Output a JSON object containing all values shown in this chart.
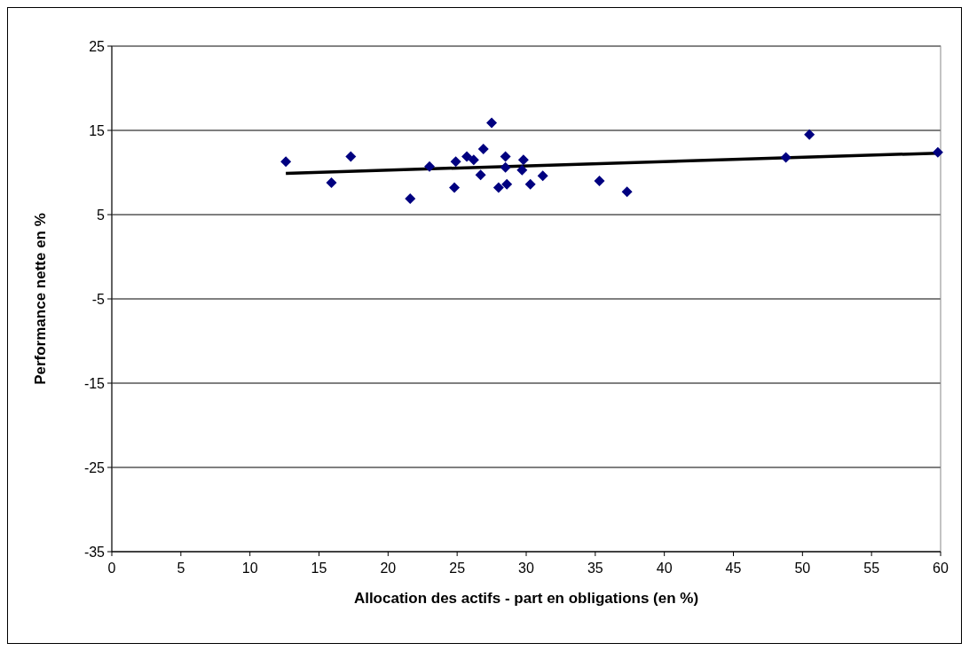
{
  "chart_data": {
    "type": "scatter",
    "xlabel": "Allocation des actifs - part en obligations (en %)",
    "ylabel": "Performance nette en %",
    "xlim": [
      0,
      60
    ],
    "xticks": [
      0,
      5,
      10,
      15,
      20,
      25,
      30,
      35,
      40,
      45,
      50,
      55,
      60
    ],
    "ylim": [
      -35,
      25
    ],
    "yticks": [
      -35,
      -25,
      -15,
      -5,
      5,
      15,
      25
    ],
    "grid": "y",
    "marker": "diamond",
    "series": [
      {
        "color": "#000080",
        "x": [
          12.6,
          15.9,
          17.3,
          21.6,
          23.0,
          24.9,
          24.8,
          25.7,
          26.2,
          26.9,
          26.7,
          27.5,
          28.0,
          28.6,
          28.5,
          28.5,
          29.8,
          29.7,
          30.3,
          31.2,
          35.3,
          37.3,
          48.8,
          50.5,
          59.8
        ],
        "values": [
          11.3,
          8.8,
          11.9,
          6.9,
          10.7,
          11.3,
          8.2,
          11.9,
          11.5,
          12.8,
          9.7,
          15.9,
          8.2,
          8.6,
          11.9,
          10.6,
          11.5,
          10.3,
          8.6,
          9.6,
          9.0,
          7.7,
          11.8,
          14.5,
          12.4
        ]
      },
      {
        "type": "line",
        "color": "#000000",
        "marker": "none",
        "line_style": "solid",
        "x": [
          12.6,
          59.8
        ],
        "values": [
          9.9,
          12.3
        ]
      }
    ]
  }
}
